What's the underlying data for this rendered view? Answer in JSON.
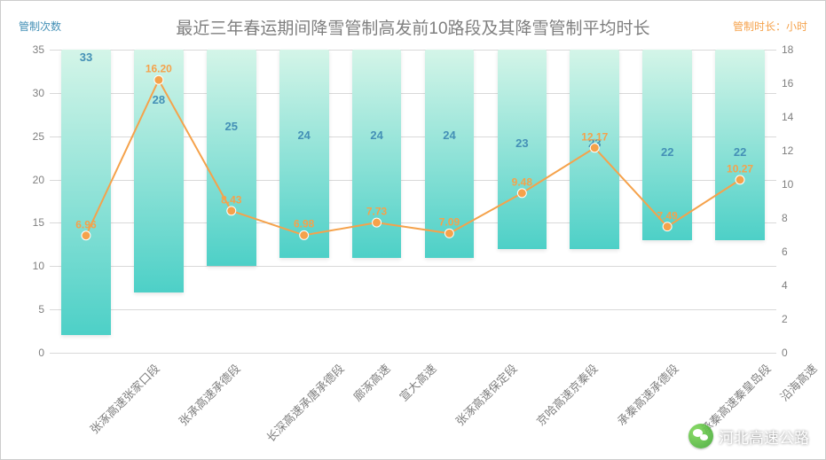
{
  "chart": {
    "type": "bar+line",
    "title": "最近三年春运期间降雪管制高发前10路段及其降雪管制平均时长",
    "title_fontsize": 19,
    "title_color": "#7f7f7f",
    "y_left_label": "管制次数",
    "y_right_label": "管制时长：小时",
    "y_left_color": "#4490b6",
    "y_right_color": "#f5a24b",
    "y_left": {
      "min": 0,
      "max": 35,
      "step": 5
    },
    "y_right": {
      "min": 0,
      "max": 18,
      "step": 2
    },
    "categories": [
      "张涿高速张家口段",
      "张承高速承德段",
      "长深高速承唐承德段",
      "廊涿高速",
      "宣大高速",
      "张涿高速保定段",
      "京哈高速京秦段",
      "承秦高速承德段",
      "承秦高速秦皇岛段",
      "沿海高速"
    ],
    "bar_values": [
      33,
      28,
      25,
      24,
      24,
      24,
      23,
      23,
      22,
      22
    ],
    "line_values": [
      6.96,
      16.2,
      8.43,
      6.98,
      7.73,
      7.09,
      9.48,
      12.17,
      7.49,
      10.27
    ],
    "line_labels": [
      "6.96",
      "16.20",
      "8.43",
      "6.98",
      "7.73",
      "7.09",
      "9.48",
      "12.17",
      "7.49",
      "10.27"
    ],
    "bar_gradient": [
      "#d4f5e8",
      "#4dd0c7"
    ],
    "bar_label_color": "#4490b6",
    "line_color": "#f5a24b",
    "marker_color": "#f5a24b",
    "marker_size": 5,
    "line_width": 2,
    "grid_color": "#d9d9d9",
    "background_color": "#ffffff",
    "label_fontsize": 13,
    "tick_fontsize": 12,
    "tick_color": "#7f7f7f"
  },
  "watermark": {
    "text": "河北高速公路",
    "icon": "wechat-icon"
  }
}
